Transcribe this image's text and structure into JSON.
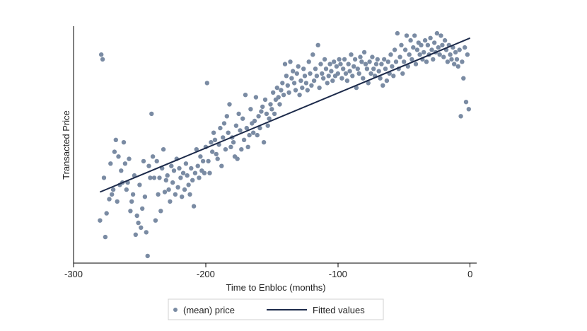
{
  "chart_data": {
    "type": "scatter",
    "xlabel": "Time to Enbloc (months)",
    "ylabel": "Transacted Price",
    "xlim": [
      -300,
      5
    ],
    "ylim": [
      0,
      100
    ],
    "xticks": [
      -300,
      -200,
      -100,
      0
    ],
    "xtick_labels": [
      "-300",
      "-200",
      "-100",
      "0"
    ],
    "y_tick_labels_shown": false,
    "grid": false,
    "legend_position": "bottom",
    "colors": {
      "points": "#7a8ba3",
      "line": "#1c2a4a"
    },
    "series": [
      {
        "name": "(mean) price",
        "type": "scatter",
        "points": [
          [
            -280,
            18
          ],
          [
            -279,
            88
          ],
          [
            -278,
            86
          ],
          [
            -277,
            36
          ],
          [
            -276,
            11
          ],
          [
            -275,
            21
          ],
          [
            -273,
            27
          ],
          [
            -272,
            42
          ],
          [
            -271,
            29
          ],
          [
            -270,
            31
          ],
          [
            -269,
            47
          ],
          [
            -268,
            52
          ],
          [
            -267,
            26
          ],
          [
            -266,
            45
          ],
          [
            -265,
            33
          ],
          [
            -264,
            39
          ],
          [
            -263,
            34
          ],
          [
            -262,
            51
          ],
          [
            -261,
            42
          ],
          [
            -260,
            31
          ],
          [
            -259,
            34
          ],
          [
            -258,
            44
          ],
          [
            -257,
            22
          ],
          [
            -256,
            26
          ],
          [
            -255,
            29
          ],
          [
            -254,
            37
          ],
          [
            -253,
            12
          ],
          [
            -252,
            20
          ],
          [
            -251,
            17
          ],
          [
            -250,
            33
          ],
          [
            -249,
            15
          ],
          [
            -248,
            23
          ],
          [
            -247,
            43
          ],
          [
            -246,
            28
          ],
          [
            -245,
            13
          ],
          [
            -244,
            3
          ],
          [
            -243,
            41
          ],
          [
            -242,
            36
          ],
          [
            -241,
            63
          ],
          [
            -240,
            45
          ],
          [
            -239,
            36
          ],
          [
            -238,
            18
          ],
          [
            -237,
            43
          ],
          [
            -236,
            29
          ],
          [
            -235,
            36
          ],
          [
            -234,
            22
          ],
          [
            -233,
            40
          ],
          [
            -232,
            48
          ],
          [
            -231,
            30
          ],
          [
            -230,
            35
          ],
          [
            -229,
            37
          ],
          [
            -228,
            31
          ],
          [
            -227,
            26
          ],
          [
            -226,
            41
          ],
          [
            -225,
            34
          ],
          [
            -224,
            39
          ],
          [
            -223,
            29
          ],
          [
            -222,
            44
          ],
          [
            -221,
            32
          ],
          [
            -220,
            40
          ],
          [
            -219,
            36
          ],
          [
            -218,
            28
          ],
          [
            -217,
            38
          ],
          [
            -216,
            31
          ],
          [
            -215,
            42
          ],
          [
            -214,
            37
          ],
          [
            -213,
            33
          ],
          [
            -212,
            29
          ],
          [
            -211,
            40
          ],
          [
            -210,
            35
          ],
          [
            -209,
            24
          ],
          [
            -208,
            38
          ],
          [
            -207,
            48
          ],
          [
            -206,
            41
          ],
          [
            -205,
            36
          ],
          [
            -204,
            45
          ],
          [
            -203,
            39
          ],
          [
            -202,
            43
          ],
          [
            -201,
            38
          ],
          [
            -200,
            49
          ],
          [
            -199,
            76
          ],
          [
            -198,
            43
          ],
          [
            -197,
            38
          ],
          [
            -196,
            51
          ],
          [
            -195,
            47
          ],
          [
            -194,
            55
          ],
          [
            -193,
            52
          ],
          [
            -192,
            46
          ],
          [
            -191,
            44
          ],
          [
            -190,
            50
          ],
          [
            -189,
            57
          ],
          [
            -188,
            41
          ],
          [
            -187,
            53
          ],
          [
            -186,
            59
          ],
          [
            -185,
            48
          ],
          [
            -184,
            62
          ],
          [
            -183,
            55
          ],
          [
            -182,
            67
          ],
          [
            -181,
            49
          ],
          [
            -180,
            53
          ],
          [
            -179,
            51
          ],
          [
            -178,
            45
          ],
          [
            -177,
            58
          ],
          [
            -176,
            44
          ],
          [
            -175,
            63
          ],
          [
            -174,
            56
          ],
          [
            -173,
            48
          ],
          [
            -172,
            61
          ],
          [
            -171,
            52
          ],
          [
            -170,
            71
          ],
          [
            -169,
            57
          ],
          [
            -168,
            49
          ],
          [
            -167,
            54
          ],
          [
            -166,
            65
          ],
          [
            -165,
            59
          ],
          [
            -164,
            55
          ],
          [
            -163,
            60
          ],
          [
            -162,
            70
          ],
          [
            -161,
            54
          ],
          [
            -160,
            62
          ],
          [
            -159,
            57
          ],
          [
            -158,
            64
          ],
          [
            -157,
            66
          ],
          [
            -156,
            51
          ],
          [
            -155,
            69
          ],
          [
            -154,
            63
          ],
          [
            -153,
            58
          ],
          [
            -152,
            61
          ],
          [
            -151,
            67
          ],
          [
            -150,
            65
          ],
          [
            -149,
            72
          ],
          [
            -148,
            63
          ],
          [
            -147,
            69
          ],
          [
            -146,
            74
          ],
          [
            -145,
            70
          ],
          [
            -144,
            67
          ],
          [
            -143,
            73
          ],
          [
            -142,
            76
          ],
          [
            -141,
            71
          ],
          [
            -140,
            84
          ],
          [
            -139,
            79
          ],
          [
            -138,
            75
          ],
          [
            -137,
            72
          ],
          [
            -136,
            85
          ],
          [
            -135,
            78
          ],
          [
            -134,
            81
          ],
          [
            -133,
            76
          ],
          [
            -132,
            73
          ],
          [
            -131,
            80
          ],
          [
            -130,
            83
          ],
          [
            -129,
            71
          ],
          [
            -128,
            77
          ],
          [
            -127,
            74
          ],
          [
            -126,
            82
          ],
          [
            -125,
            79
          ],
          [
            -124,
            76
          ],
          [
            -123,
            73
          ],
          [
            -122,
            85
          ],
          [
            -121,
            80
          ],
          [
            -120,
            75
          ],
          [
            -119,
            88
          ],
          [
            -118,
            77
          ],
          [
            -117,
            82
          ],
          [
            -116,
            79
          ],
          [
            -115,
            92
          ],
          [
            -114,
            74
          ],
          [
            -113,
            84
          ],
          [
            -112,
            80
          ],
          [
            -111,
            78
          ],
          [
            -110,
            86
          ],
          [
            -109,
            82
          ],
          [
            -108,
            76
          ],
          [
            -107,
            79
          ],
          [
            -106,
            84
          ],
          [
            -105,
            81
          ],
          [
            -104,
            77
          ],
          [
            -103,
            85
          ],
          [
            -102,
            79
          ],
          [
            -101,
            83
          ],
          [
            -100,
            80
          ],
          [
            -99,
            86
          ],
          [
            -98,
            84
          ],
          [
            -97,
            78
          ],
          [
            -96,
            82
          ],
          [
            -95,
            86
          ],
          [
            -94,
            80
          ],
          [
            -93,
            77
          ],
          [
            -92,
            84
          ],
          [
            -91,
            81
          ],
          [
            -90,
            88
          ],
          [
            -89,
            79
          ],
          [
            -88,
            83
          ],
          [
            -87,
            86
          ],
          [
            -86,
            74
          ],
          [
            -85,
            82
          ],
          [
            -84,
            80
          ],
          [
            -83,
            87
          ],
          [
            -82,
            85
          ],
          [
            -81,
            78
          ],
          [
            -80,
            89
          ],
          [
            -79,
            84
          ],
          [
            -78,
            82
          ],
          [
            -77,
            76
          ],
          [
            -76,
            85
          ],
          [
            -75,
            80
          ],
          [
            -74,
            87
          ],
          [
            -73,
            82
          ],
          [
            -72,
            79
          ],
          [
            -71,
            84
          ],
          [
            -70,
            86
          ],
          [
            -69,
            81
          ],
          [
            -68,
            78
          ],
          [
            -67,
            84
          ],
          [
            -66,
            75
          ],
          [
            -65,
            86
          ],
          [
            -64,
            82
          ],
          [
            -63,
            77
          ],
          [
            -62,
            85
          ],
          [
            -61,
            80
          ],
          [
            -60,
            88
          ],
          [
            -59,
            83
          ],
          [
            -58,
            79
          ],
          [
            -57,
            90
          ],
          [
            -56,
            85
          ],
          [
            -55,
            97
          ],
          [
            -54,
            82
          ],
          [
            -53,
            87
          ],
          [
            -52,
            92
          ],
          [
            -51,
            80
          ],
          [
            -50,
            85
          ],
          [
            -49,
            90
          ],
          [
            -48,
            96
          ],
          [
            -47,
            83
          ],
          [
            -46,
            88
          ],
          [
            -45,
            94
          ],
          [
            -44,
            86
          ],
          [
            -43,
            91
          ],
          [
            -42,
            96
          ],
          [
            -41,
            84
          ],
          [
            -40,
            90
          ],
          [
            -39,
            93
          ],
          [
            -38,
            88
          ],
          [
            -37,
            92
          ],
          [
            -36,
            86
          ],
          [
            -35,
            89
          ],
          [
            -34,
            94
          ],
          [
            -33,
            85
          ],
          [
            -32,
            92
          ],
          [
            -31,
            88
          ],
          [
            -30,
            95
          ],
          [
            -29,
            90
          ],
          [
            -28,
            86
          ],
          [
            -27,
            93
          ],
          [
            -26,
            89
          ],
          [
            -25,
            97
          ],
          [
            -24,
            91
          ],
          [
            -23,
            88
          ],
          [
            -22,
            96
          ],
          [
            -21,
            92
          ],
          [
            -20,
            87
          ],
          [
            -19,
            94
          ],
          [
            -18,
            90
          ],
          [
            -17,
            85
          ],
          [
            -16,
            92
          ],
          [
            -15,
            88
          ],
          [
            -14,
            86
          ],
          [
            -13,
            91
          ],
          [
            -12,
            84
          ],
          [
            -11,
            89
          ],
          [
            -10,
            86
          ],
          [
            -9,
            83
          ],
          [
            -8,
            90
          ],
          [
            -7,
            62
          ],
          [
            -6,
            85
          ],
          [
            -5,
            78
          ],
          [
            -4,
            91
          ],
          [
            -3,
            68
          ],
          [
            -2,
            88
          ],
          [
            -1,
            65
          ]
        ]
      },
      {
        "name": "Fitted values",
        "type": "line",
        "points": [
          [
            -280,
            30
          ],
          [
            0,
            95
          ]
        ]
      }
    ]
  }
}
